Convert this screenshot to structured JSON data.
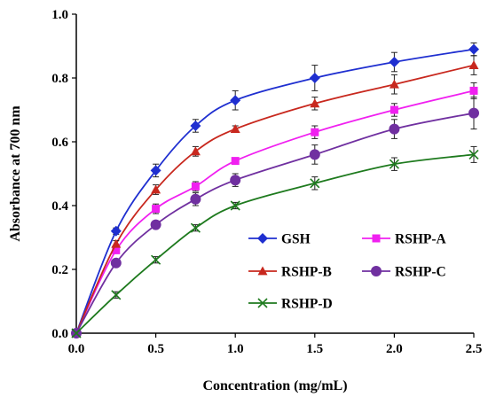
{
  "chart_data": {
    "type": "line",
    "xlabel": "Concentration (mg/mL)",
    "ylabel": "Absorbance at 700 nm",
    "xlim": [
      0,
      2.5
    ],
    "ylim": [
      0,
      1.0
    ],
    "x_ticks": [
      "0.0",
      "0.5",
      "1.0",
      "1.5",
      "2.0",
      "2.5"
    ],
    "y_ticks": [
      "0.0",
      "0.2",
      "0.4",
      "0.6",
      "0.8",
      "1.0"
    ],
    "grid": false,
    "legend_position": "bottom-right",
    "x": [
      0,
      0.25,
      0.5,
      0.75,
      1.0,
      1.5,
      2.0,
      2.5
    ],
    "series": [
      {
        "name": "GSH",
        "color": "#1F2FD0",
        "marker": "diamond",
        "values": [
          0,
          0.32,
          0.51,
          0.65,
          0.73,
          0.8,
          0.85,
          0.89
        ],
        "errors": [
          0,
          0.01,
          0.02,
          0.02,
          0.03,
          0.04,
          0.03,
          0.02
        ]
      },
      {
        "name": "RSHP-A",
        "color": "#F020F0",
        "marker": "square",
        "values": [
          0,
          0.26,
          0.39,
          0.46,
          0.54,
          0.63,
          0.7,
          0.76
        ],
        "errors": [
          0,
          0.01,
          0.015,
          0.015,
          0.01,
          0.02,
          0.02,
          0.025
        ]
      },
      {
        "name": "RSHP-B",
        "color": "#C8281E",
        "marker": "triangle",
        "values": [
          0,
          0.28,
          0.45,
          0.57,
          0.64,
          0.72,
          0.78,
          0.84
        ],
        "errors": [
          0,
          0.01,
          0.015,
          0.015,
          0.01,
          0.02,
          0.03,
          0.03
        ]
      },
      {
        "name": "RSHP-C",
        "color": "#7030A0",
        "marker": "circle",
        "values": [
          0,
          0.22,
          0.34,
          0.42,
          0.48,
          0.56,
          0.64,
          0.69
        ],
        "errors": [
          0,
          0.01,
          0.01,
          0.02,
          0.02,
          0.03,
          0.03,
          0.05
        ]
      },
      {
        "name": "RSHP-D",
        "color": "#1E7A1E",
        "marker": "x",
        "values": [
          0,
          0.12,
          0.23,
          0.33,
          0.4,
          0.47,
          0.53,
          0.56
        ],
        "errors": [
          0,
          0.01,
          0.01,
          0.01,
          0.01,
          0.02,
          0.02,
          0.025
        ]
      }
    ]
  }
}
